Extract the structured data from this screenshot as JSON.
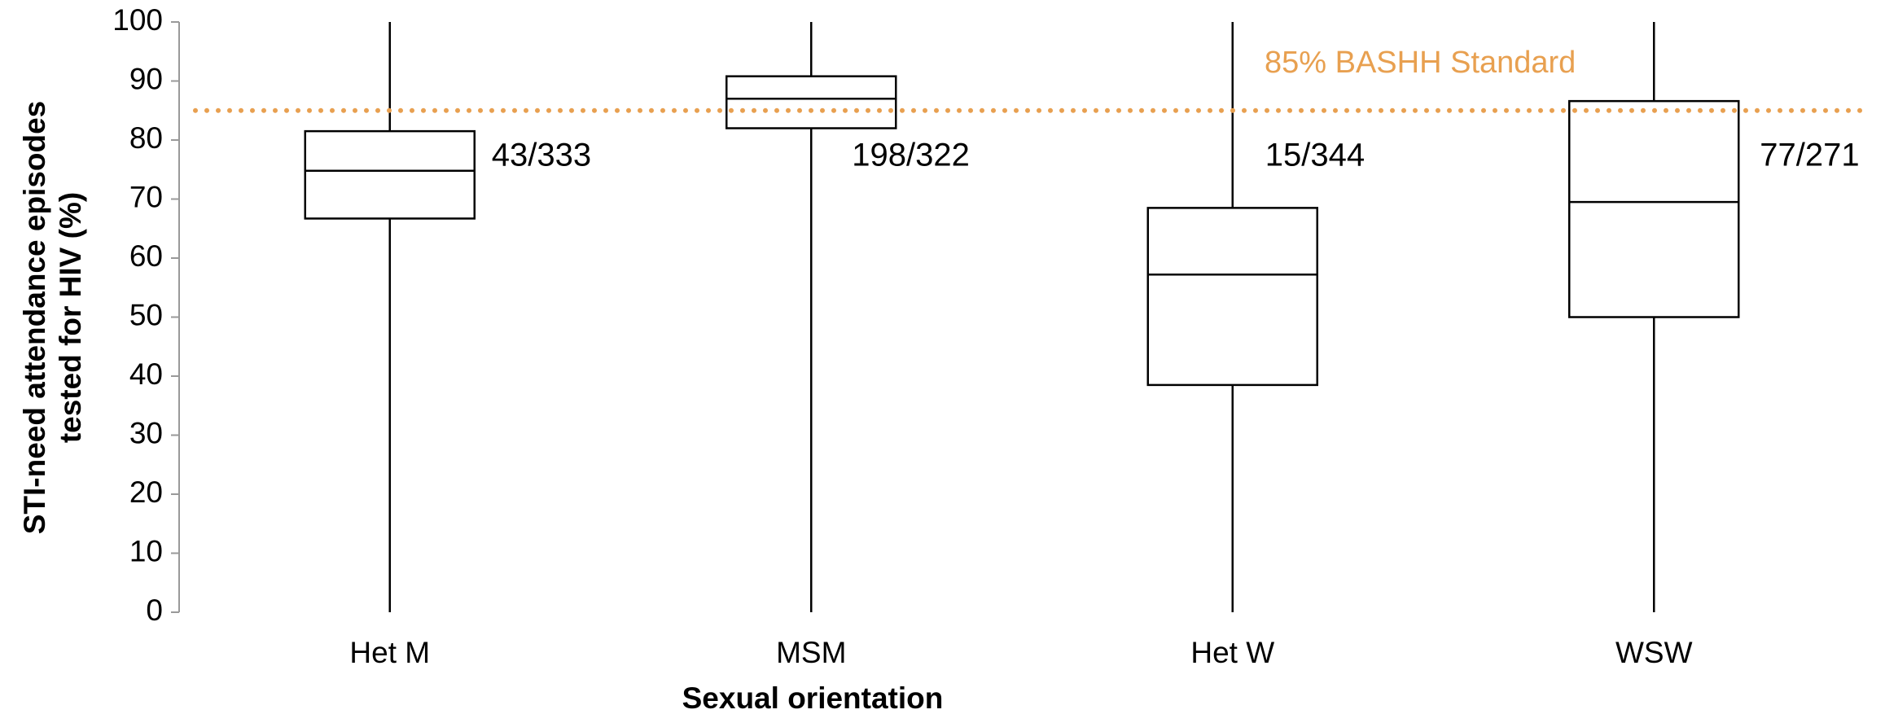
{
  "chart_data": {
    "type": "box",
    "categories": [
      "Het M",
      "MSM",
      "Het W",
      "WSW"
    ],
    "boxes": [
      {
        "min": 0,
        "q1": 66.7,
        "median": 74.8,
        "q3": 81.5,
        "max": 100
      },
      {
        "min": 0,
        "q1": 82,
        "median": 87,
        "q3": 90.8,
        "max": 100
      },
      {
        "min": 0,
        "q1": 38.5,
        "median": 57.2,
        "q3": 68.5,
        "max": 100
      },
      {
        "min": 0,
        "q1": 50,
        "median": 69.5,
        "q3": 86.6,
        "max": 100
      }
    ],
    "annotations": [
      "43/333",
      "198/322",
      "15/344",
      "77/271"
    ],
    "reference_line": {
      "value": 85,
      "label": "85% BASHH Standard",
      "color": "#e8a050"
    },
    "xlabel": "Sexual orientation",
    "ylabel": [
      "STI-need attendance episodes",
      "tested for HIV (%)"
    ],
    "ylim": [
      0,
      100
    ],
    "yticks": [
      0,
      10,
      20,
      30,
      40,
      50,
      60,
      70,
      80,
      90,
      100
    ]
  }
}
